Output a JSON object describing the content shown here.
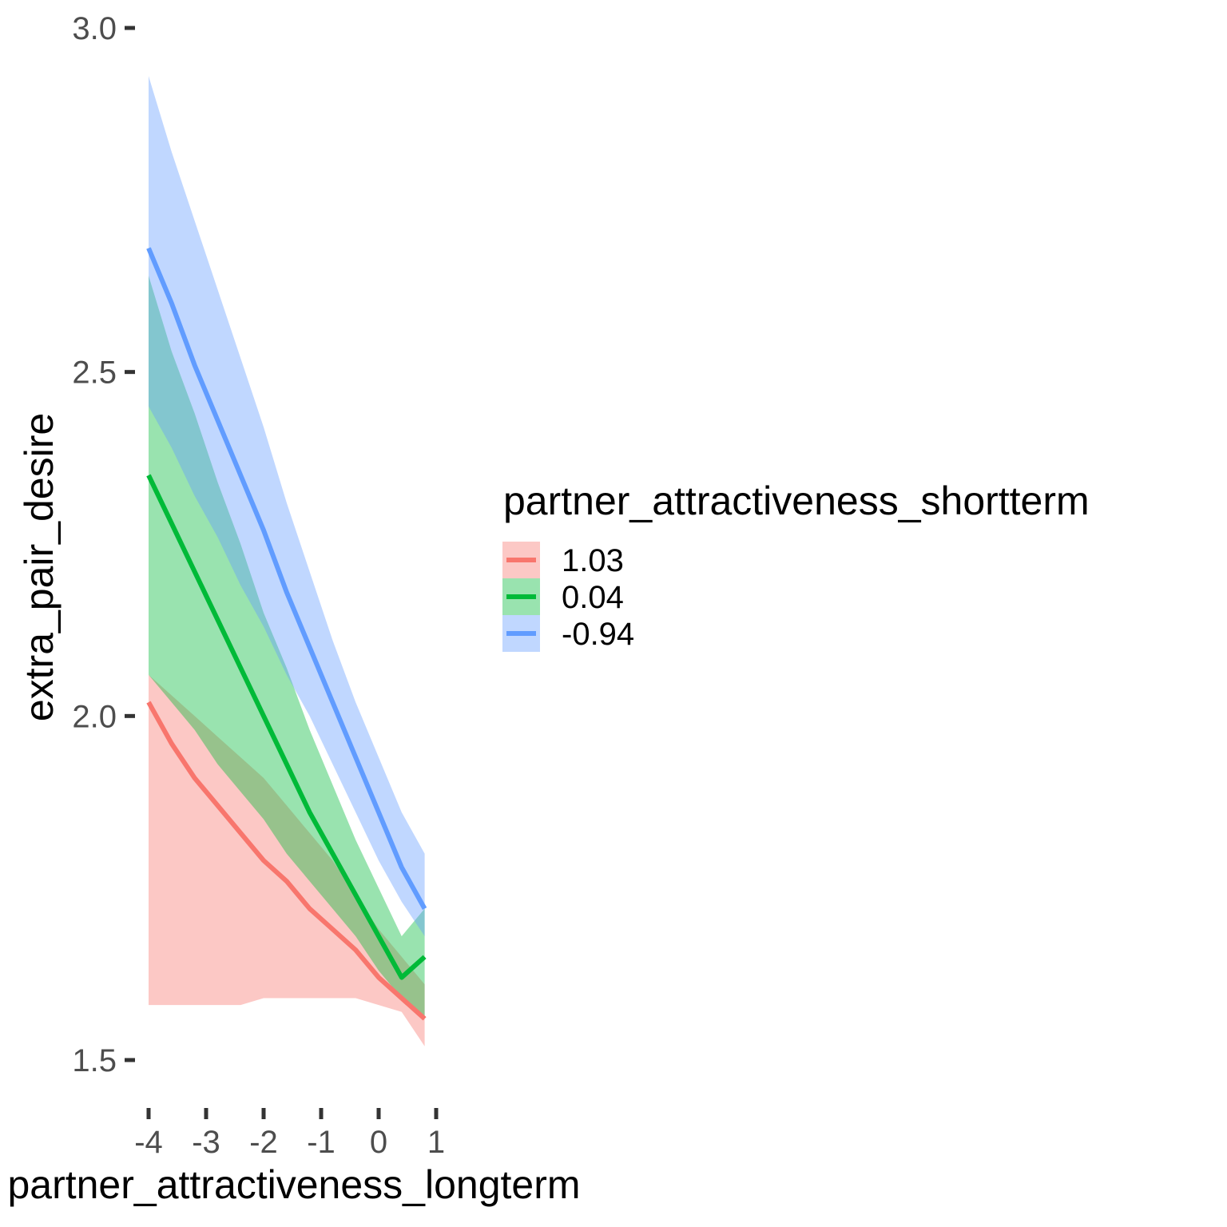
{
  "chart_data": {
    "type": "line",
    "title": "",
    "xlabel": "partner_attractiveness_longterm",
    "ylabel": "extra_pair_desire",
    "xlim": [
      -4.0,
      1.0
    ],
    "ylim": [
      1.45,
      3.0
    ],
    "x_ticks": [
      -4,
      -3,
      -2,
      -1,
      0,
      1
    ],
    "x_tick_labels": [
      "-4",
      "-3",
      "-2",
      "-1",
      "0",
      "1"
    ],
    "y_ticks": [
      1.5,
      2.0,
      2.5,
      3.0
    ],
    "y_tick_labels": [
      "1.5",
      "2.0",
      "2.5",
      "3.0"
    ],
    "grid": false,
    "legend": {
      "title": "partner_attractiveness_shortterm",
      "position": "right"
    },
    "x": [
      -4.0,
      -3.6,
      -3.2,
      -2.8,
      -2.4,
      -2.0,
      -1.6,
      -1.2,
      -0.8,
      -0.4,
      0.0,
      0.4,
      0.8
    ],
    "series": [
      {
        "name": "1.03",
        "color": "#F8766D",
        "fill": "#F8766D",
        "values": [
          2.02,
          1.96,
          1.91,
          1.87,
          1.83,
          1.79,
          1.76,
          1.72,
          1.69,
          1.66,
          1.62,
          1.59,
          1.56
        ],
        "lower": [
          1.58,
          1.58,
          1.58,
          1.58,
          1.58,
          1.59,
          1.59,
          1.59,
          1.59,
          1.59,
          1.58,
          1.57,
          1.52
        ],
        "upper": [
          2.06,
          2.03,
          2.0,
          1.97,
          1.94,
          1.91,
          1.87,
          1.83,
          1.79,
          1.74,
          1.69,
          1.65,
          1.61
        ]
      },
      {
        "name": "0.04",
        "color": "#00BA38",
        "fill": "#00BA38",
        "values": [
          2.35,
          2.28,
          2.21,
          2.14,
          2.07,
          2.0,
          1.93,
          1.86,
          1.8,
          1.74,
          1.68,
          1.62,
          1.65
        ],
        "lower": [
          2.06,
          2.02,
          1.98,
          1.93,
          1.89,
          1.85,
          1.8,
          1.76,
          1.72,
          1.68,
          1.63,
          1.59,
          1.56
        ],
        "upper": [
          2.64,
          2.53,
          2.44,
          2.34,
          2.25,
          2.15,
          2.07,
          1.98,
          1.9,
          1.82,
          1.75,
          1.68,
          1.72
        ]
      },
      {
        "name": "-0.94",
        "color": "#619CFF",
        "fill": "#619CFF",
        "values": [
          2.68,
          2.6,
          2.51,
          2.43,
          2.35,
          2.27,
          2.18,
          2.1,
          2.02,
          1.94,
          1.86,
          1.78,
          1.72
        ],
        "lower": [
          2.45,
          2.39,
          2.32,
          2.26,
          2.19,
          2.13,
          2.06,
          2.0,
          1.93,
          1.86,
          1.79,
          1.73,
          1.68
        ],
        "upper": [
          2.93,
          2.82,
          2.72,
          2.62,
          2.52,
          2.42,
          2.31,
          2.21,
          2.11,
          2.02,
          1.94,
          1.86,
          1.8
        ]
      }
    ]
  }
}
